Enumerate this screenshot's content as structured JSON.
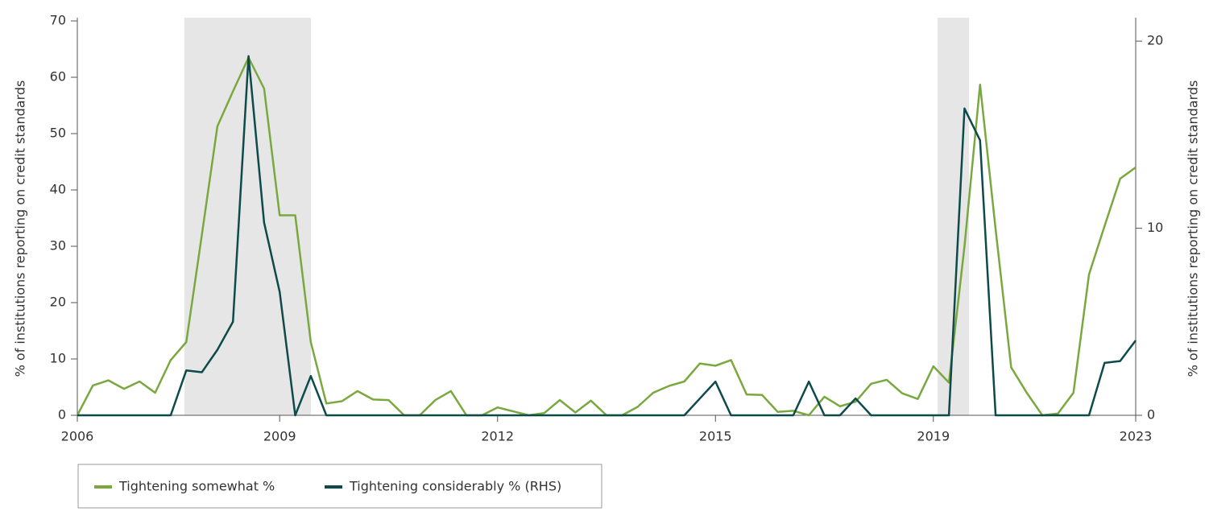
{
  "chart_data": {
    "type": "line",
    "y_label": "% of institutions reporting on credit standards",
    "y2_label": "% of institutions reporting on credit standards",
    "categories": [
      "2006",
      null,
      null,
      null,
      null,
      null,
      null,
      null,
      null,
      null,
      null,
      null,
      null,
      "2009",
      null,
      null,
      null,
      null,
      null,
      null,
      null,
      null,
      null,
      null,
      null,
      null,
      null,
      "2012",
      null,
      null,
      null,
      null,
      null,
      null,
      null,
      null,
      null,
      null,
      null,
      null,
      null,
      "2015",
      null,
      null,
      null,
      null,
      null,
      null,
      null,
      null,
      null,
      null,
      null,
      null,
      null,
      "2019",
      null,
      null,
      null,
      null,
      null,
      null,
      null,
      null,
      null,
      null,
      null,
      null,
      "2023"
    ],
    "series": [
      {
        "name": "Tightening somewhat %",
        "color": "#79a83f",
        "axis": "y",
        "values": [
          0,
          5.3,
          6.2,
          4.7,
          6,
          4,
          9.8,
          13,
          32,
          51.3,
          57.5,
          63.5,
          58,
          35.5,
          35.5,
          13,
          2.1,
          2.5,
          4.3,
          2.8,
          2.7,
          0,
          0,
          2.7,
          4.3,
          0,
          0,
          1.4,
          0.7,
          0,
          0.4,
          2.7,
          0.5,
          2.6,
          0,
          0,
          1.5,
          4,
          5.2,
          6,
          9.2,
          8.8,
          9.8,
          3.7,
          3.6,
          0.6,
          0.8,
          0,
          3.3,
          1.6,
          2.4,
          5.6,
          6.3,
          3.9,
          2.9,
          8.7,
          5.8,
          30,
          58.7,
          33,
          8.5,
          4,
          0,
          0.3,
          4,
          25,
          33.6,
          42,
          44
        ]
      },
      {
        "name": "Tightening considerably % (RHS)",
        "color": "#0e4a4a",
        "axis": "y2",
        "values": [
          0,
          0,
          0,
          0,
          0,
          0,
          0,
          2.4,
          2.3,
          3.5,
          5,
          19.2,
          10.3,
          6.6,
          0,
          2.1,
          0,
          0,
          0,
          0,
          0,
          0,
          0,
          0,
          0,
          0,
          0,
          0,
          0,
          0,
          0,
          0,
          0,
          0,
          0,
          0,
          0,
          0,
          0,
          0,
          0.9,
          1.8,
          0,
          0,
          0,
          0,
          0,
          1.8,
          0,
          0,
          0.9,
          0,
          0,
          0,
          0,
          0,
          0,
          16.4,
          14.7,
          0,
          0,
          0,
          0,
          0,
          0,
          0,
          2.8,
          2.9,
          4
        ]
      }
    ],
    "ylim": [
      0,
      70
    ],
    "yticks": [
      0,
      10,
      20,
      30,
      40,
      50,
      60,
      70
    ],
    "y2lim": [
      0,
      21.08
    ],
    "y2ticks": [
      0,
      10,
      20
    ],
    "legend": "bottom-left",
    "grid": false
  }
}
